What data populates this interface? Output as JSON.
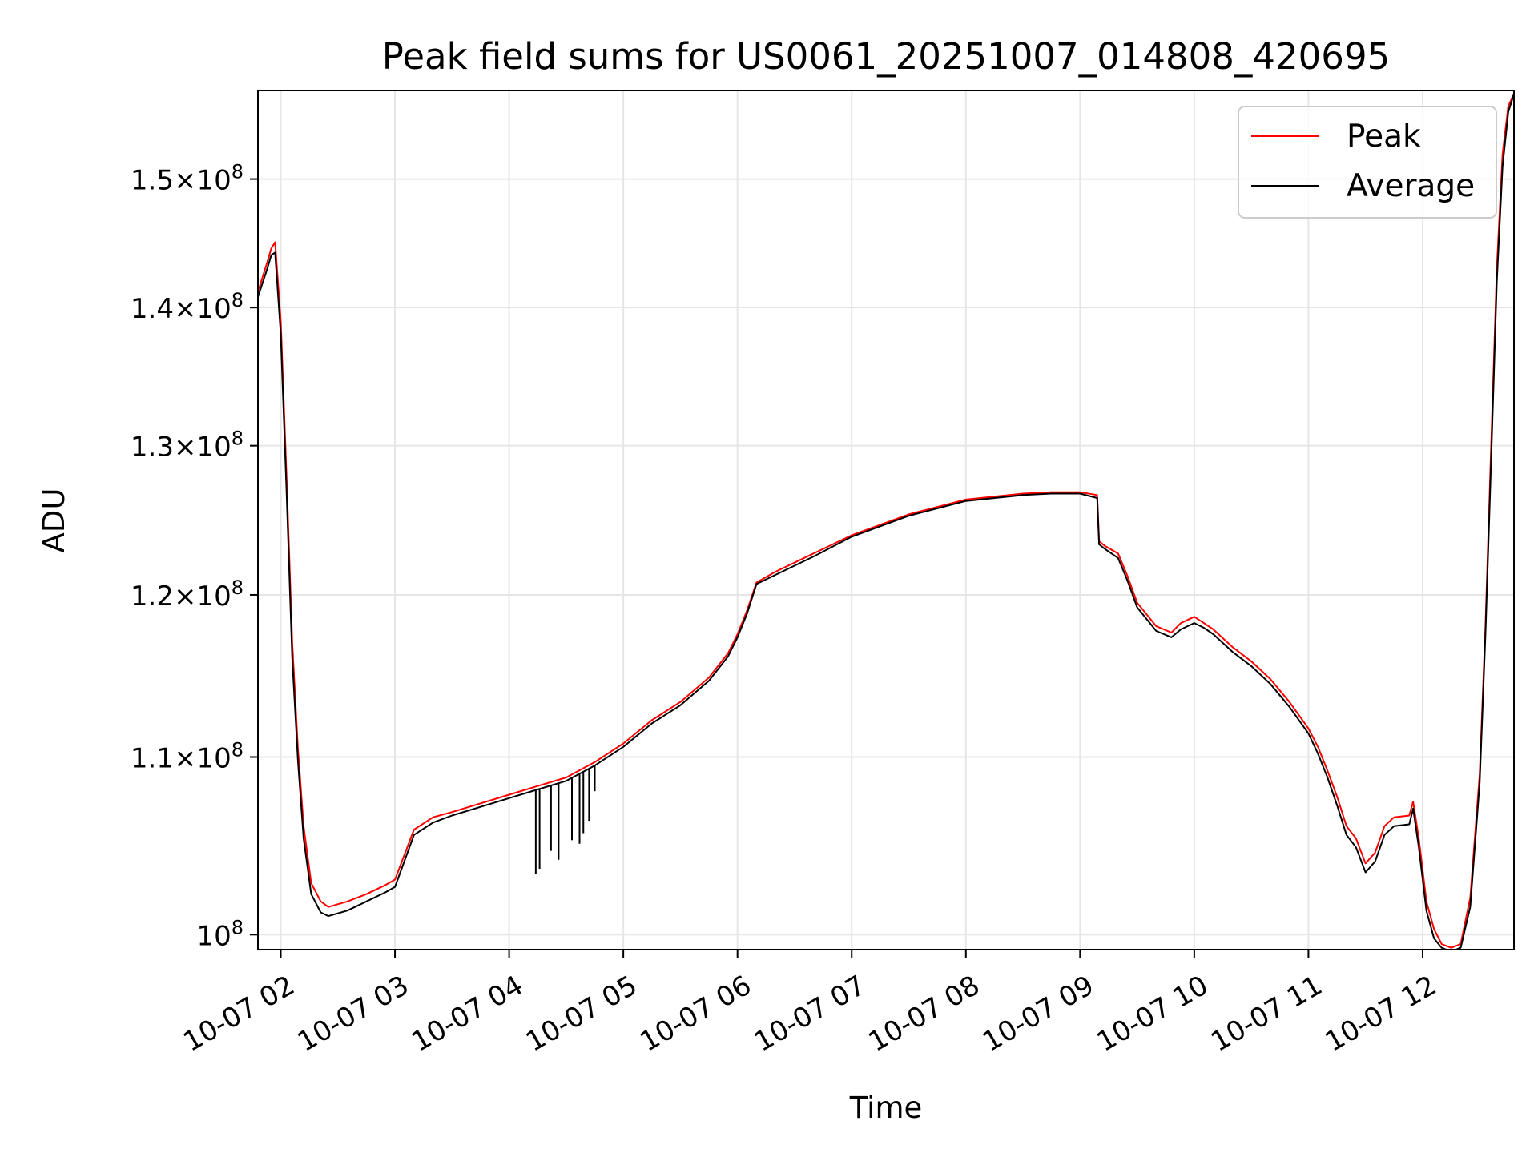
{
  "chart_data": {
    "type": "line",
    "title": "Peak field sums for US0061_20251007_014808_420695",
    "xlabel": "Time",
    "ylabel": "ADU",
    "x_unit": "time",
    "xlim": [
      "2025-10-07 01:48",
      "2025-10-07 12:48"
    ],
    "ylim": [
      99200000,
      157300000
    ],
    "yscale": "log",
    "grid": true,
    "legend_position": "top-right",
    "x_ticks": [
      {
        "value": "2025-10-07 02:00",
        "label": "10-07 02"
      },
      {
        "value": "2025-10-07 03:00",
        "label": "10-07 03"
      },
      {
        "value": "2025-10-07 04:00",
        "label": "10-07 04"
      },
      {
        "value": "2025-10-07 05:00",
        "label": "10-07 05"
      },
      {
        "value": "2025-10-07 06:00",
        "label": "10-07 06"
      },
      {
        "value": "2025-10-07 07:00",
        "label": "10-07 07"
      },
      {
        "value": "2025-10-07 08:00",
        "label": "10-07 08"
      },
      {
        "value": "2025-10-07 09:00",
        "label": "10-07 09"
      },
      {
        "value": "2025-10-07 10:00",
        "label": "10-07 10"
      },
      {
        "value": "2025-10-07 11:00",
        "label": "10-07 11"
      },
      {
        "value": "2025-10-07 12:00",
        "label": "10-07 12"
      }
    ],
    "y_ticks": [
      {
        "value": 100000000,
        "mant": "",
        "exp": "8"
      },
      {
        "value": 110000000,
        "mant": "1.1",
        "exp": "8"
      },
      {
        "value": 120000000,
        "mant": "1.2",
        "exp": "8"
      },
      {
        "value": 130000000,
        "mant": "1.3",
        "exp": "8"
      },
      {
        "value": 140000000,
        "mant": "1.4",
        "exp": "8"
      },
      {
        "value": 150000000,
        "mant": "1.5",
        "exp": "8"
      }
    ],
    "series": [
      {
        "name": "Peak",
        "color": "#ff0000",
        "x": [
          "2025-10-07 01:48",
          "2025-10-07 01:53",
          "2025-10-07 01:55",
          "2025-10-07 01:57",
          "2025-10-07 02:00",
          "2025-10-07 02:03",
          "2025-10-07 02:06",
          "2025-10-07 02:09",
          "2025-10-07 02:12",
          "2025-10-07 02:16",
          "2025-10-07 02:21",
          "2025-10-07 02:25",
          "2025-10-07 02:35",
          "2025-10-07 02:45",
          "2025-10-07 02:55",
          "2025-10-07 03:00",
          "2025-10-07 03:10",
          "2025-10-07 03:20",
          "2025-10-07 03:30",
          "2025-10-07 03:45",
          "2025-10-07 04:00",
          "2025-10-07 04:15",
          "2025-10-07 04:30",
          "2025-10-07 04:45",
          "2025-10-07 05:00",
          "2025-10-07 05:15",
          "2025-10-07 05:30",
          "2025-10-07 05:45",
          "2025-10-07 05:55",
          "2025-10-07 06:00",
          "2025-10-07 06:05",
          "2025-10-07 06:10",
          "2025-10-07 06:20",
          "2025-10-07 06:40",
          "2025-10-07 07:00",
          "2025-10-07 07:30",
          "2025-10-07 08:00",
          "2025-10-07 08:30",
          "2025-10-07 08:45",
          "2025-10-07 09:00",
          "2025-10-07 09:09",
          "2025-10-07 09:10",
          "2025-10-07 09:13",
          "2025-10-07 09:20",
          "2025-10-07 09:25",
          "2025-10-07 09:30",
          "2025-10-07 09:40",
          "2025-10-07 09:48",
          "2025-10-07 09:53",
          "2025-10-07 10:00",
          "2025-10-07 10:05",
          "2025-10-07 10:10",
          "2025-10-07 10:20",
          "2025-10-07 10:30",
          "2025-10-07 10:40",
          "2025-10-07 10:50",
          "2025-10-07 11:00",
          "2025-10-07 11:05",
          "2025-10-07 11:10",
          "2025-10-07 11:15",
          "2025-10-07 11:20",
          "2025-10-07 11:25",
          "2025-10-07 11:30",
          "2025-10-07 11:35",
          "2025-10-07 11:40",
          "2025-10-07 11:45",
          "2025-10-07 11:53",
          "2025-10-07 11:55",
          "2025-10-07 11:58",
          "2025-10-07 12:02",
          "2025-10-07 12:06",
          "2025-10-07 12:10",
          "2025-10-07 12:15",
          "2025-10-07 12:20",
          "2025-10-07 12:25",
          "2025-10-07 12:30",
          "2025-10-07 12:33",
          "2025-10-07 12:36",
          "2025-10-07 12:39",
          "2025-10-07 12:42",
          "2025-10-07 12:45",
          "2025-10-07 12:48"
        ],
        "y": [
          141200000,
          143500000,
          144500000,
          145000000,
          139000000,
          128000000,
          117000000,
          110500000,
          106000000,
          102800000,
          101800000,
          101500000,
          101800000,
          102200000,
          102700000,
          103000000,
          105800000,
          106500000,
          106800000,
          107300000,
          107800000,
          108300000,
          108800000,
          109700000,
          110800000,
          112200000,
          113300000,
          114800000,
          116300000,
          117500000,
          119000000,
          120800000,
          121500000,
          122700000,
          123900000,
          125300000,
          126300000,
          126700000,
          126800000,
          126800000,
          126600000,
          123500000,
          123200000,
          122700000,
          121200000,
          119500000,
          118000000,
          117600000,
          118200000,
          118600000,
          118200000,
          117800000,
          116700000,
          115800000,
          114700000,
          113300000,
          111700000,
          110600000,
          109200000,
          107700000,
          106000000,
          105300000,
          103900000,
          104500000,
          106000000,
          106500000,
          106600000,
          107400000,
          105300000,
          101800000,
          100300000,
          99500000,
          99300000,
          99500000,
          102000000,
          109000000,
          118000000,
          130000000,
          143000000,
          152000000,
          156000000,
          157000000
        ]
      },
      {
        "name": "Average",
        "color": "#000000",
        "x": [
          "2025-10-07 01:48",
          "2025-10-07 01:53",
          "2025-10-07 01:55",
          "2025-10-07 01:57",
          "2025-10-07 02:00",
          "2025-10-07 02:03",
          "2025-10-07 02:06",
          "2025-10-07 02:09",
          "2025-10-07 02:12",
          "2025-10-07 02:16",
          "2025-10-07 02:21",
          "2025-10-07 02:25",
          "2025-10-07 02:35",
          "2025-10-07 02:45",
          "2025-10-07 02:55",
          "2025-10-07 03:00",
          "2025-10-07 03:10",
          "2025-10-07 03:20",
          "2025-10-07 03:30",
          "2025-10-07 03:45",
          "2025-10-07 04:00",
          "2025-10-07 04:15",
          "2025-10-07 04:30",
          "2025-10-07 04:45",
          "2025-10-07 05:00",
          "2025-10-07 05:15",
          "2025-10-07 05:30",
          "2025-10-07 05:45",
          "2025-10-07 05:55",
          "2025-10-07 06:00",
          "2025-10-07 06:05",
          "2025-10-07 06:10",
          "2025-10-07 06:20",
          "2025-10-07 06:40",
          "2025-10-07 07:00",
          "2025-10-07 07:30",
          "2025-10-07 08:00",
          "2025-10-07 08:30",
          "2025-10-07 08:45",
          "2025-10-07 09:00",
          "2025-10-07 09:09",
          "2025-10-07 09:10",
          "2025-10-07 09:13",
          "2025-10-07 09:20",
          "2025-10-07 09:25",
          "2025-10-07 09:30",
          "2025-10-07 09:40",
          "2025-10-07 09:48",
          "2025-10-07 09:53",
          "2025-10-07 10:00",
          "2025-10-07 10:05",
          "2025-10-07 10:10",
          "2025-10-07 10:20",
          "2025-10-07 10:30",
          "2025-10-07 10:40",
          "2025-10-07 10:50",
          "2025-10-07 11:00",
          "2025-10-07 11:05",
          "2025-10-07 11:10",
          "2025-10-07 11:15",
          "2025-10-07 11:20",
          "2025-10-07 11:25",
          "2025-10-07 11:30",
          "2025-10-07 11:35",
          "2025-10-07 11:40",
          "2025-10-07 11:45",
          "2025-10-07 11:53",
          "2025-10-07 11:55",
          "2025-10-07 11:58",
          "2025-10-07 12:02",
          "2025-10-07 12:06",
          "2025-10-07 12:10",
          "2025-10-07 12:15",
          "2025-10-07 12:20",
          "2025-10-07 12:25",
          "2025-10-07 12:30",
          "2025-10-07 12:33",
          "2025-10-07 12:36",
          "2025-10-07 12:39",
          "2025-10-07 12:42",
          "2025-10-07 12:45",
          "2025-10-07 12:48"
        ],
        "y": [
          140800000,
          143000000,
          144000000,
          144200000,
          138000000,
          127000000,
          116000000,
          109800000,
          105300000,
          102200000,
          101200000,
          101000000,
          101300000,
          101800000,
          102300000,
          102600000,
          105500000,
          106200000,
          106600000,
          107100000,
          107600000,
          108100000,
          108600000,
          109500000,
          110600000,
          112000000,
          113100000,
          114600000,
          116100000,
          117300000,
          118800000,
          120700000,
          121300000,
          122500000,
          123800000,
          125200000,
          126200000,
          126600000,
          126700000,
          126700000,
          126400000,
          123300000,
          123000000,
          122400000,
          120900000,
          119200000,
          117700000,
          117300000,
          117800000,
          118200000,
          117900000,
          117500000,
          116400000,
          115500000,
          114400000,
          113000000,
          111400000,
          110200000,
          108800000,
          107200000,
          105500000,
          104800000,
          103400000,
          104000000,
          105500000,
          106000000,
          106100000,
          107000000,
          104800000,
          101300000,
          99800000,
          99300000,
          99100000,
          99300000,
          101500000,
          108500000,
          117500000,
          129000000,
          142000000,
          151000000,
          155500000,
          157000000
        ]
      }
    ],
    "dips": [
      {
        "x": "2025-10-07 04:14",
        "y": 103300000
      },
      {
        "x": "2025-10-07 04:16",
        "y": 103600000
      },
      {
        "x": "2025-10-07 04:22",
        "y": 104600000
      },
      {
        "x": "2025-10-07 04:26",
        "y": 104100000
      },
      {
        "x": "2025-10-07 04:33",
        "y": 105200000
      },
      {
        "x": "2025-10-07 04:37",
        "y": 105000000
      },
      {
        "x": "2025-10-07 04:39",
        "y": 105600000
      },
      {
        "x": "2025-10-07 04:42",
        "y": 106300000
      },
      {
        "x": "2025-10-07 04:45",
        "y": 108000000
      }
    ]
  }
}
